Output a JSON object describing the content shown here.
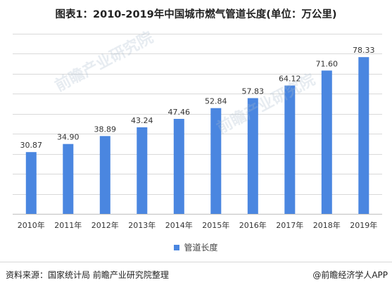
{
  "title": "图表1：2010-2019年中国城市燃气管道长度(单位：万公里)",
  "legend": {
    "label": "管道长度",
    "color": "#4a86e0"
  },
  "source": "资料来源：国家统计局 前瞻产业研究院整理",
  "credit": "@前瞻经济学人APP",
  "watermark": "前瞻产业研究院",
  "colors": {
    "bar": "#4a86e0",
    "grid": "#d9d9d9",
    "axis": "#bfbfbf"
  },
  "chart_data": {
    "type": "bar",
    "title": "图表1：2010-2019年中国城市燃气管道长度(单位：万公里)",
    "categories": [
      "2010年",
      "2011年",
      "2012年",
      "2013年",
      "2014年",
      "2015年",
      "2016年",
      "2017年",
      "2018年",
      "2019年"
    ],
    "series": [
      {
        "name": "管道长度",
        "values": [
          30.87,
          34.9,
          38.89,
          43.24,
          47.46,
          52.84,
          57.83,
          64.12,
          71.6,
          78.33
        ]
      }
    ],
    "value_labels": [
      "30.87",
      "34.90",
      "38.89",
      "43.24",
      "47.46",
      "52.84",
      "57.83",
      "64.12",
      "71.60",
      "78.33"
    ],
    "ylim": [
      0,
      90
    ],
    "y_grid_step": 10,
    "grid": true,
    "y_tick_labels_shown": false,
    "legend_position": "bottom"
  }
}
